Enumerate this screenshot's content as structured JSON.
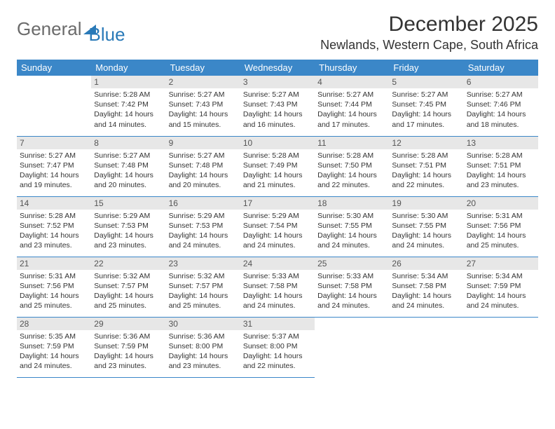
{
  "logo": {
    "part1": "General",
    "part2": "Blue"
  },
  "title": {
    "month": "December 2025",
    "location": "Newlands, Western Cape, South Africa"
  },
  "colors": {
    "header_bg": "#3b87c8",
    "header_text": "#ffffff",
    "daynum_bg": "#e7e7e7",
    "border": "#3b87c8",
    "logo_gray": "#6b6b6b",
    "logo_blue": "#2a7ab8"
  },
  "weekdays": [
    "Sunday",
    "Monday",
    "Tuesday",
    "Wednesday",
    "Thursday",
    "Friday",
    "Saturday"
  ],
  "weeks": [
    [
      null,
      {
        "n": "1",
        "sr": "5:28 AM",
        "ss": "7:42 PM",
        "dl": "14 hours and 14 minutes."
      },
      {
        "n": "2",
        "sr": "5:27 AM",
        "ss": "7:43 PM",
        "dl": "14 hours and 15 minutes."
      },
      {
        "n": "3",
        "sr": "5:27 AM",
        "ss": "7:43 PM",
        "dl": "14 hours and 16 minutes."
      },
      {
        "n": "4",
        "sr": "5:27 AM",
        "ss": "7:44 PM",
        "dl": "14 hours and 17 minutes."
      },
      {
        "n": "5",
        "sr": "5:27 AM",
        "ss": "7:45 PM",
        "dl": "14 hours and 17 minutes."
      },
      {
        "n": "6",
        "sr": "5:27 AM",
        "ss": "7:46 PM",
        "dl": "14 hours and 18 minutes."
      }
    ],
    [
      {
        "n": "7",
        "sr": "5:27 AM",
        "ss": "7:47 PM",
        "dl": "14 hours and 19 minutes."
      },
      {
        "n": "8",
        "sr": "5:27 AM",
        "ss": "7:48 PM",
        "dl": "14 hours and 20 minutes."
      },
      {
        "n": "9",
        "sr": "5:27 AM",
        "ss": "7:48 PM",
        "dl": "14 hours and 20 minutes."
      },
      {
        "n": "10",
        "sr": "5:28 AM",
        "ss": "7:49 PM",
        "dl": "14 hours and 21 minutes."
      },
      {
        "n": "11",
        "sr": "5:28 AM",
        "ss": "7:50 PM",
        "dl": "14 hours and 22 minutes."
      },
      {
        "n": "12",
        "sr": "5:28 AM",
        "ss": "7:51 PM",
        "dl": "14 hours and 22 minutes."
      },
      {
        "n": "13",
        "sr": "5:28 AM",
        "ss": "7:51 PM",
        "dl": "14 hours and 23 minutes."
      }
    ],
    [
      {
        "n": "14",
        "sr": "5:28 AM",
        "ss": "7:52 PM",
        "dl": "14 hours and 23 minutes."
      },
      {
        "n": "15",
        "sr": "5:29 AM",
        "ss": "7:53 PM",
        "dl": "14 hours and 23 minutes."
      },
      {
        "n": "16",
        "sr": "5:29 AM",
        "ss": "7:53 PM",
        "dl": "14 hours and 24 minutes."
      },
      {
        "n": "17",
        "sr": "5:29 AM",
        "ss": "7:54 PM",
        "dl": "14 hours and 24 minutes."
      },
      {
        "n": "18",
        "sr": "5:30 AM",
        "ss": "7:55 PM",
        "dl": "14 hours and 24 minutes."
      },
      {
        "n": "19",
        "sr": "5:30 AM",
        "ss": "7:55 PM",
        "dl": "14 hours and 24 minutes."
      },
      {
        "n": "20",
        "sr": "5:31 AM",
        "ss": "7:56 PM",
        "dl": "14 hours and 25 minutes."
      }
    ],
    [
      {
        "n": "21",
        "sr": "5:31 AM",
        "ss": "7:56 PM",
        "dl": "14 hours and 25 minutes."
      },
      {
        "n": "22",
        "sr": "5:32 AM",
        "ss": "7:57 PM",
        "dl": "14 hours and 25 minutes."
      },
      {
        "n": "23",
        "sr": "5:32 AM",
        "ss": "7:57 PM",
        "dl": "14 hours and 25 minutes."
      },
      {
        "n": "24",
        "sr": "5:33 AM",
        "ss": "7:58 PM",
        "dl": "14 hours and 24 minutes."
      },
      {
        "n": "25",
        "sr": "5:33 AM",
        "ss": "7:58 PM",
        "dl": "14 hours and 24 minutes."
      },
      {
        "n": "26",
        "sr": "5:34 AM",
        "ss": "7:58 PM",
        "dl": "14 hours and 24 minutes."
      },
      {
        "n": "27",
        "sr": "5:34 AM",
        "ss": "7:59 PM",
        "dl": "14 hours and 24 minutes."
      }
    ],
    [
      {
        "n": "28",
        "sr": "5:35 AM",
        "ss": "7:59 PM",
        "dl": "14 hours and 24 minutes."
      },
      {
        "n": "29",
        "sr": "5:36 AM",
        "ss": "7:59 PM",
        "dl": "14 hours and 23 minutes."
      },
      {
        "n": "30",
        "sr": "5:36 AM",
        "ss": "8:00 PM",
        "dl": "14 hours and 23 minutes."
      },
      {
        "n": "31",
        "sr": "5:37 AM",
        "ss": "8:00 PM",
        "dl": "14 hours and 22 minutes."
      },
      null,
      null,
      null
    ]
  ],
  "labels": {
    "sunrise": "Sunrise: ",
    "sunset": "Sunset: ",
    "daylight": "Daylight: "
  }
}
